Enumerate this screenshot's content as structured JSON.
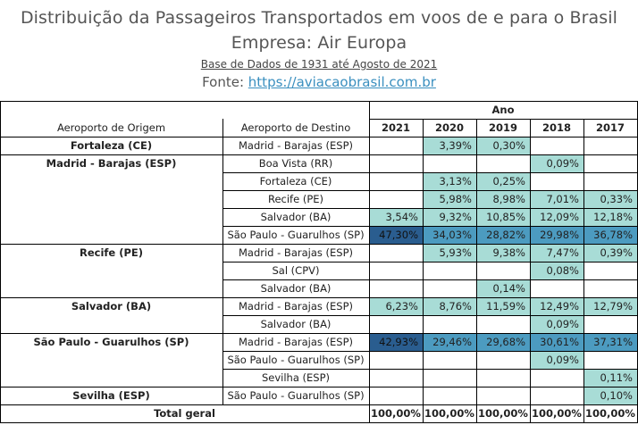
{
  "header": {
    "title_line1": "Distribuição da Passageiros Transportados em voos de e para o Brasil",
    "title_line2": "Empresa: Air Europa",
    "subtitle": "Base de Dados de 1931 até Agosto de 2021",
    "fonte_label": "Fonte: ",
    "fonte_link": "https://aviacaobrasil.com.br"
  },
  "table": {
    "group_header": "Ano",
    "col_origin": "Aeroporto de Origem",
    "col_dest": "Aeroporto de Destino",
    "years": [
      "2021",
      "2020",
      "2019",
      "2018",
      "2017"
    ],
    "rows": [
      {
        "origin": "Fortaleza (CE)",
        "dest": "Madrid - Barajas (ESP)",
        "values": [
          "",
          "3,39%",
          "0,30%",
          "",
          ""
        ]
      },
      {
        "origin": "Madrid - Barajas (ESP)",
        "dest": "Boa Vista (RR)",
        "values": [
          "",
          "",
          "",
          "0,09%",
          ""
        ]
      },
      {
        "origin": "",
        "dest": "Fortaleza (CE)",
        "values": [
          "",
          "3,13%",
          "0,25%",
          "",
          ""
        ]
      },
      {
        "origin": "",
        "dest": "Recife (PE)",
        "values": [
          "",
          "5,98%",
          "8,98%",
          "7,01%",
          "0,33%"
        ]
      },
      {
        "origin": "",
        "dest": "Salvador (BA)",
        "values": [
          "3,54%",
          "9,32%",
          "10,85%",
          "12,09%",
          "12,18%"
        ]
      },
      {
        "origin": "",
        "dest": "São Paulo - Guarulhos (SP)",
        "values": [
          "47,30%",
          "34,03%",
          "28,82%",
          "29,98%",
          "36,78%"
        ]
      },
      {
        "origin": "Recife (PE)",
        "dest": "Madrid - Barajas (ESP)",
        "values": [
          "",
          "5,93%",
          "9,38%",
          "7,47%",
          "0,39%"
        ]
      },
      {
        "origin": "",
        "dest": "Sal (CPV)",
        "values": [
          "",
          "",
          "",
          "0,08%",
          ""
        ]
      },
      {
        "origin": "",
        "dest": "Salvador (BA)",
        "values": [
          "",
          "",
          "0,14%",
          "",
          ""
        ]
      },
      {
        "origin": "Salvador (BA)",
        "dest": "Madrid - Barajas (ESP)",
        "values": [
          "6,23%",
          "8,76%",
          "11,59%",
          "12,49%",
          "12,79%"
        ]
      },
      {
        "origin": "",
        "dest": "Salvador (BA)",
        "values": [
          "",
          "",
          "",
          "0,09%",
          ""
        ]
      },
      {
        "origin": "São Paulo - Guarulhos (SP)",
        "dest": "Madrid - Barajas (ESP)",
        "values": [
          "42,93%",
          "29,46%",
          "29,68%",
          "30,61%",
          "37,31%"
        ]
      },
      {
        "origin": "",
        "dest": "São Paulo - Guarulhos (SP)",
        "values": [
          "",
          "",
          "",
          "0,09%",
          ""
        ]
      },
      {
        "origin": "",
        "dest": "Sevilha (ESP)",
        "values": [
          "",
          "",
          "",
          "",
          "0,11%"
        ]
      },
      {
        "origin": "Sevilha (ESP)",
        "dest": "São Paulo - Guarulhos (SP)",
        "values": [
          "",
          "",
          "",
          "",
          "0,10%"
        ]
      }
    ],
    "total_label": "Total geral",
    "totals": [
      "100,00%",
      "100,00%",
      "100,00%",
      "100,00%",
      "100,00%"
    ]
  },
  "colors": {
    "light": "#a8dcd6",
    "medium": "#4c9bc0",
    "dark": "#2a5d8f"
  }
}
